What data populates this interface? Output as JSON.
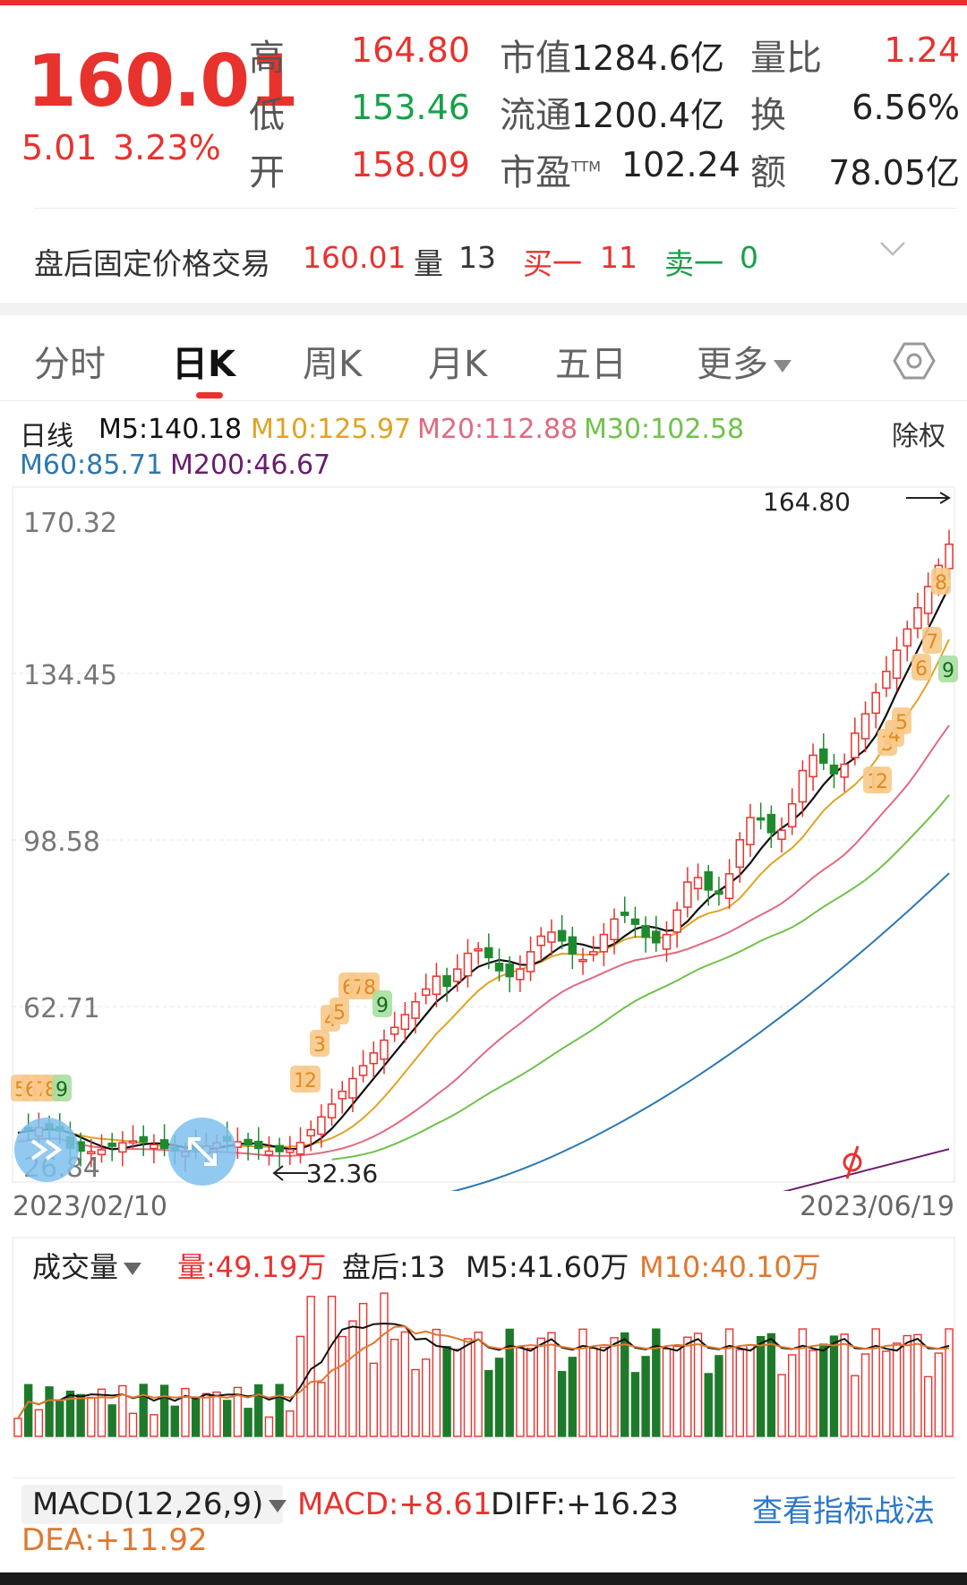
{
  "quote": {
    "price": "160.01",
    "change": "5.01",
    "change_pct": "3.23%",
    "high_label": "高",
    "high": "164.80",
    "low_label": "低",
    "low": "153.46",
    "open_label": "开",
    "open": "158.09",
    "mktcap_label": "市值",
    "mktcap": "1284.6亿",
    "float_label": "流通",
    "float": "1200.4亿",
    "pe_label": "市盈",
    "pe_sup": "TTM",
    "pe": "102.24",
    "volratio_label": "量比",
    "volratio": "1.24",
    "turnover_label": "换",
    "turnover": "6.56%",
    "amount_label": "额",
    "amount": "78.05亿"
  },
  "after_hours": {
    "label": "盘后固定价格交易",
    "price": "160.01",
    "vol_label": "量",
    "vol": "13",
    "bid_label": "买一",
    "bid": "11",
    "ask_label": "卖一",
    "ask": "0"
  },
  "tabs": [
    {
      "label": "分时"
    },
    {
      "label": "日K"
    },
    {
      "label": "周K"
    },
    {
      "label": "月K"
    },
    {
      "label": "五日"
    },
    {
      "label": "更多"
    }
  ],
  "ma": {
    "period_label": "日线",
    "m5": "M5:140.18",
    "m10": "M10:125.97",
    "m20": "M20:112.88",
    "m30": "M30:102.58",
    "m60": "M60:85.71",
    "m200": "M200:46.67",
    "adjust_label": "除权",
    "colors": {
      "m5": "#111111",
      "m10": "#e0a325",
      "m20": "#e06a80",
      "m30": "#6fc24b",
      "m60": "#2c78b0",
      "m200": "#6a1c6e"
    }
  },
  "kline": {
    "y_ticks": [
      "170.32",
      "134.45",
      "98.58",
      "62.71",
      "26.84"
    ],
    "high_marker": "164.80",
    "low_marker": "32.36",
    "start_date": "2023/02/10",
    "end_date": "2023/06/19",
    "signal_labels": [
      "5",
      "6",
      "7",
      "8",
      "9",
      "1",
      "2",
      "3",
      "4",
      "5",
      "6",
      "7",
      "8",
      "9",
      "1",
      "2",
      "3",
      "4",
      "5",
      "6",
      "7",
      "8",
      "9"
    ]
  },
  "volume": {
    "indicator_label": "成交量",
    "vol_text": "量:49.19万",
    "after_text": "盘后:13",
    "m5_text": "M5:41.60万",
    "m10_text": "M10:40.10万"
  },
  "macd": {
    "selector_label": "MACD(12,26,9)",
    "macd_text": "MACD:+8.61",
    "diff_text": "DIFF:+16.23",
    "dea_text": "DEA:+11.92",
    "strategy_link": "查看指标战法"
  }
}
